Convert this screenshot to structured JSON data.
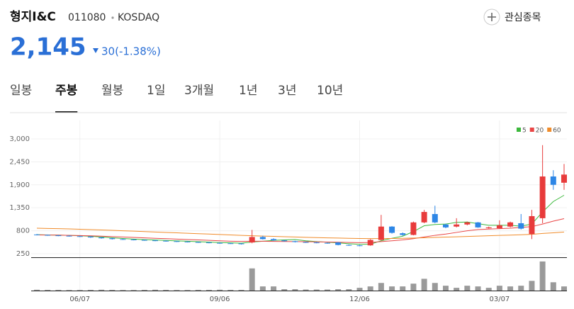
{
  "header": {
    "name": "형지I&C",
    "code": "011080",
    "market": "KOSDAQ",
    "price": "2,145",
    "change": "30(-1.38%)",
    "watch": "관심종목"
  },
  "tabs": {
    "items": [
      "일봉",
      "주봉",
      "월봉",
      "1일",
      "3개월",
      "1년",
      "3년",
      "10년"
    ],
    "active": 1
  },
  "chart_data": {
    "type": "candlestick",
    "categories": [
      null,
      null,
      null,
      null,
      "06/07",
      null,
      null,
      null,
      null,
      null,
      null,
      null,
      null,
      null,
      null,
      null,
      null,
      "09/06",
      null,
      null,
      null,
      null,
      null,
      null,
      null,
      null,
      null,
      null,
      null,
      null,
      "12/06",
      null,
      null,
      null,
      null,
      null,
      null,
      null,
      null,
      null,
      null,
      null,
      null,
      "03/07",
      null,
      null,
      null,
      null,
      null,
      null
    ],
    "open": [
      710,
      700,
      690,
      680,
      670,
      660,
      640,
      620,
      600,
      590,
      580,
      570,
      560,
      550,
      540,
      530,
      520,
      510,
      500,
      495,
      520,
      650,
      600,
      570,
      550,
      530,
      520,
      510,
      520,
      460,
      450,
      450,
      580,
      900,
      740,
      700,
      1000,
      1200,
      950,
      900,
      950,
      1000,
      860,
      860,
      900,
      980,
      720,
      1100,
      2100,
      1950
    ],
    "high": [
      720,
      710,
      700,
      690,
      680,
      670,
      650,
      630,
      610,
      600,
      590,
      580,
      570,
      560,
      550,
      540,
      530,
      520,
      510,
      505,
      820,
      680,
      620,
      580,
      560,
      540,
      530,
      520,
      530,
      470,
      460,
      600,
      1180,
      910,
      760,
      1020,
      1300,
      1400,
      970,
      1100,
      1020,
      1010,
      900,
      1050,
      1020,
      1200,
      1300,
      2850,
      2250,
      2400
    ],
    "low": [
      690,
      680,
      670,
      660,
      650,
      630,
      610,
      590,
      580,
      570,
      560,
      550,
      540,
      530,
      520,
      510,
      500,
      490,
      485,
      470,
      500,
      590,
      560,
      540,
      520,
      510,
      500,
      490,
      450,
      440,
      430,
      440,
      570,
      730,
      680,
      690,
      980,
      980,
      860,
      880,
      930,
      870,
      850,
      850,
      880,
      830,
      600,
      980,
      1780,
      1780
    ],
    "close": [
      700,
      690,
      680,
      670,
      660,
      640,
      620,
      600,
      590,
      580,
      570,
      560,
      550,
      540,
      530,
      520,
      510,
      500,
      495,
      480,
      650,
      600,
      570,
      550,
      530,
      520,
      510,
      500,
      460,
      450,
      440,
      580,
      900,
      750,
      700,
      1000,
      1250,
      1000,
      880,
      950,
      1000,
      880,
      880,
      930,
      1000,
      850,
      1150,
      2100,
      1900,
      2145
    ],
    "volume": [
      12,
      10,
      10,
      8,
      8,
      10,
      12,
      10,
      8,
      8,
      10,
      12,
      10,
      8,
      8,
      10,
      10,
      12,
      10,
      10,
      320,
      60,
      60,
      20,
      20,
      15,
      15,
      15,
      20,
      20,
      40,
      60,
      110,
      60,
      60,
      100,
      170,
      110,
      70,
      40,
      70,
      60,
      40,
      70,
      60,
      70,
      140,
      420,
      120,
      60
    ],
    "up_color": "#e83b3b",
    "down_color": "#2d86e6",
    "volume_color": "#9a9a9a",
    "series": [
      {
        "name": "5",
        "color": "#3cb83c",
        "values": [
          705,
          700,
          695,
          688,
          680,
          668,
          650,
          632,
          615,
          600,
          588,
          578,
          568,
          558,
          548,
          538,
          528,
          518,
          510,
          503,
          530,
          550,
          570,
          580,
          590,
          560,
          540,
          525,
          510,
          490,
          475,
          480,
          560,
          620,
          670,
          780,
          920,
          950,
          960,
          1000,
          1010,
          970,
          930,
          930,
          930,
          910,
          960,
          1250,
          1500,
          1650
        ]
      },
      {
        "name": "20",
        "color": "#e94545",
        "values": [
          700,
          698,
          695,
          690,
          685,
          678,
          670,
          660,
          650,
          640,
          630,
          620,
          610,
          600,
          590,
          580,
          570,
          560,
          550,
          545,
          550,
          548,
          545,
          542,
          540,
          538,
          535,
          530,
          525,
          520,
          515,
          520,
          540,
          560,
          580,
          610,
          650,
          690,
          720,
          760,
          800,
          830,
          840,
          850,
          860,
          880,
          900,
          960,
          1030,
          1090
        ]
      },
      {
        "name": "60",
        "color": "#f08c2b",
        "values": [
          860,
          855,
          850,
          843,
          835,
          827,
          818,
          810,
          800,
          790,
          780,
          770,
          760,
          750,
          740,
          730,
          720,
          710,
          700,
          690,
          680,
          672,
          665,
          658,
          650,
          643,
          636,
          630,
          625,
          620,
          615,
          612,
          612,
          615,
          620,
          625,
          632,
          640,
          648,
          656,
          664,
          672,
          680,
          688,
          696,
          704,
          715,
          735,
          750,
          770
        ]
      }
    ],
    "ylim": [
      165,
      3220
    ],
    "yticks": [
      {
        "value": 3000,
        "label": "3,000"
      },
      {
        "value": 2450,
        "label": "2,450"
      },
      {
        "value": 1900,
        "label": "1,900"
      },
      {
        "value": 1350,
        "label": "1,350"
      },
      {
        "value": 800,
        "label": "800"
      },
      250
    ],
    "volume_lim": [
      0,
      450
    ],
    "grid": true
  }
}
